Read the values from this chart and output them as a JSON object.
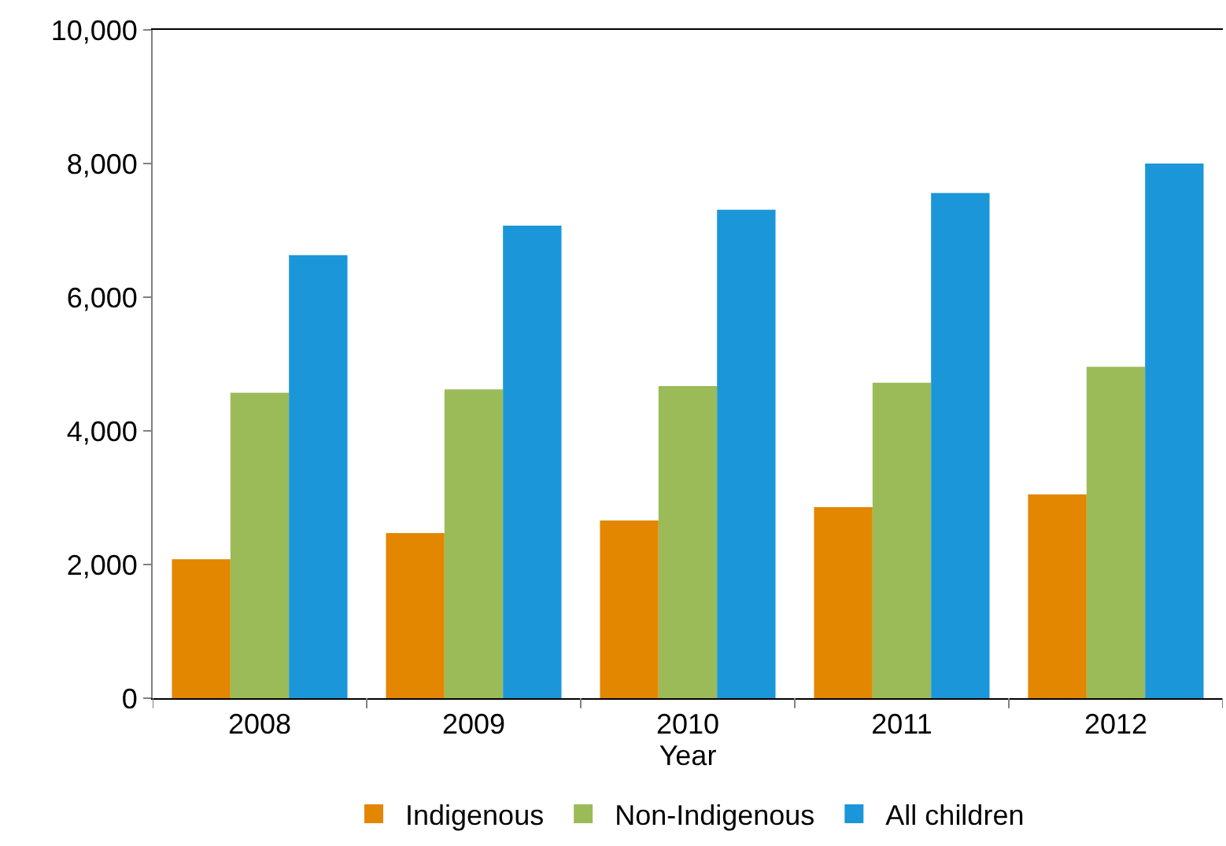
{
  "chart_data": {
    "type": "bar",
    "xlabel": "Year",
    "categories": [
      "2008",
      "2009",
      "2010",
      "2011",
      "2012"
    ],
    "series": [
      {
        "name": "Indigenous",
        "color": "#e38600",
        "values": [
          2080,
          2470,
          2660,
          2860,
          3050
        ]
      },
      {
        "name": "Non-Indigenous",
        "color": "#9bbb59",
        "values": [
          4570,
          4620,
          4670,
          4720,
          4960
        ]
      },
      {
        "name": "All children",
        "color": "#1b96d8",
        "values": [
          6630,
          7070,
          7310,
          7560,
          8000
        ]
      }
    ],
    "ylim": [
      0,
      10000
    ],
    "yticks": [
      {
        "value": 0,
        "label": "0"
      },
      {
        "value": 2000,
        "label": "2,000"
      },
      {
        "value": 4000,
        "label": "4,000"
      },
      {
        "value": 6000,
        "label": "6,000"
      },
      {
        "value": 8000,
        "label": "8,000"
      },
      {
        "value": 10000,
        "label": "10,000"
      }
    ],
    "legend": "bottom"
  }
}
